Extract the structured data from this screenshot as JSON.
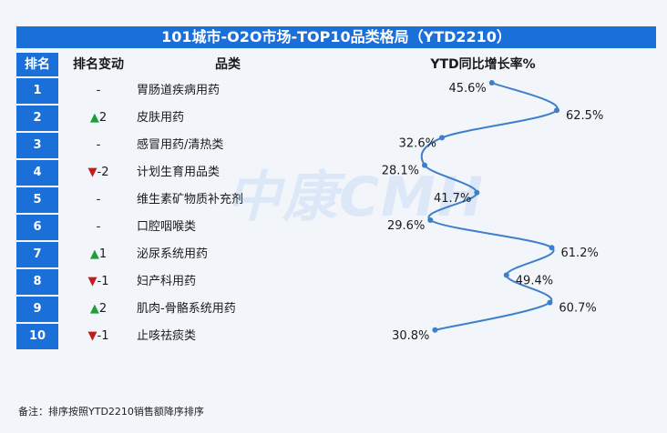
{
  "title": "101城市-O2O市场-TOP10品类格局（YTD2210）",
  "headers": {
    "rank": "排名",
    "change": "排名变动",
    "category": "品类",
    "ytd": "YTD同比增长率%"
  },
  "watermark": "中康CMH",
  "footnote": "备注：排序按照YTD2210销售额降序排序",
  "colors": {
    "accent": "#1b6fd8",
    "line": "#3f7fc9",
    "up": "#1e9e3a",
    "down": "#c41a1a"
  },
  "rows": [
    {
      "rank": "1",
      "arrow": "",
      "change": "-",
      "category": "胃肠道疾病用药"
    },
    {
      "rank": "2",
      "arrow": "▲",
      "change": "2",
      "category": "皮肤用药"
    },
    {
      "rank": "3",
      "arrow": "",
      "change": "-",
      "category": "感冒用药/清热类"
    },
    {
      "rank": "4",
      "arrow": "▼",
      "change": "-2",
      "category": "计划生育用品类"
    },
    {
      "rank": "5",
      "arrow": "",
      "change": "-",
      "category": "维生素矿物质补充剂"
    },
    {
      "rank": "6",
      "arrow": "",
      "change": "-",
      "category": "口腔咽喉类"
    },
    {
      "rank": "7",
      "arrow": "▲",
      "change": "1",
      "category": "泌尿系统用药"
    },
    {
      "rank": "8",
      "arrow": "▼",
      "change": "-1",
      "category": "妇产科用药"
    },
    {
      "rank": "9",
      "arrow": "▲",
      "change": "2",
      "category": "肌肉-骨骼系统用药"
    },
    {
      "rank": "10",
      "arrow": "▼",
      "change": "-1",
      "category": "止咳祛痰类"
    }
  ],
  "chart_data": {
    "type": "line",
    "categories": [
      "胃肠道疾病用药",
      "皮肤用药",
      "感冒用药/清热类",
      "计划生育用品类",
      "维生素矿物质补充剂",
      "口腔咽喉类",
      "泌尿系统用药",
      "妇产科用药",
      "肌肉-骨骼系统用药",
      "止咳祛痰类"
    ],
    "values": [
      45.6,
      62.5,
      32.6,
      28.1,
      41.7,
      29.6,
      61.2,
      49.4,
      60.7,
      30.8
    ],
    "labels": [
      "45.6%",
      "62.5%",
      "32.6%",
      "28.1%",
      "41.7%",
      "29.6%",
      "61.2%",
      "49.4%",
      "60.7%",
      "30.8%"
    ],
    "title": "YTD同比增长率%",
    "orientation": "vertical-categories"
  }
}
